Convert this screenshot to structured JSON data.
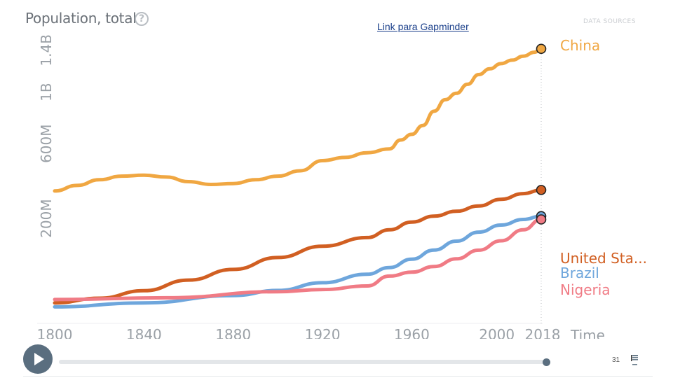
{
  "header": {
    "title": "Population, total",
    "help_icon": "question-circle-icon",
    "link_text": "Link para Gapminder",
    "source_text": "DATA SOURCES"
  },
  "player": {
    "play_icon": "play-icon",
    "current_year": 2018,
    "page_number": "31",
    "flag_icon": "flag-icon"
  },
  "chart_data": {
    "type": "line",
    "title": "Population, total",
    "xlabel": "Time",
    "ylabel": "",
    "xlim": [
      1800,
      2018
    ],
    "ylim": [
      0,
      1450000000
    ],
    "y_scale": "sqrt",
    "x_ticks": [
      {
        "value": 1800,
        "label": "1800"
      },
      {
        "value": 1840,
        "label": "1840"
      },
      {
        "value": 1880,
        "label": "1880"
      },
      {
        "value": 1920,
        "label": "1920"
      },
      {
        "value": 1960,
        "label": "1960"
      },
      {
        "value": 2000,
        "label": "2000"
      },
      {
        "value": 2018,
        "label": "2018"
      }
    ],
    "y_ticks": [
      {
        "value": 200000000,
        "label": "200M"
      },
      {
        "value": 600000000,
        "label": "600M"
      },
      {
        "value": 1000000000,
        "label": "1B"
      },
      {
        "value": 1400000000,
        "label": "1.4B"
      }
    ],
    "grid": false,
    "series": [
      {
        "name": "China",
        "label": "China",
        "color": "#f0a742",
        "x": [
          1800,
          1810,
          1820,
          1830,
          1840,
          1850,
          1860,
          1870,
          1880,
          1890,
          1900,
          1910,
          1920,
          1930,
          1940,
          1950,
          1955,
          1960,
          1965,
          1970,
          1975,
          1980,
          1985,
          1990,
          1995,
          2000,
          2005,
          2010,
          2015,
          2018
        ],
        "y": [
          322000000,
          350000000,
          380000000,
          400000000,
          405000000,
          395000000,
          370000000,
          355000000,
          360000000,
          380000000,
          400000000,
          430000000,
          490000000,
          510000000,
          540000000,
          565000000,
          625000000,
          665000000,
          730000000,
          840000000,
          935000000,
          990000000,
          1070000000,
          1160000000,
          1215000000,
          1265000000,
          1300000000,
          1340000000,
          1380000000,
          1415000000
        ]
      },
      {
        "name": "United States",
        "label": "United Sta...",
        "color": "#d15f22",
        "x": [
          1800,
          1820,
          1840,
          1860,
          1880,
          1900,
          1920,
          1940,
          1950,
          1960,
          1970,
          1980,
          1990,
          2000,
          2010,
          2018
        ],
        "y": [
          6000000,
          9600000,
          17100000,
          31500000,
          50200000,
          76200000,
          106000000,
          132000000,
          158000000,
          186000000,
          209000000,
          229000000,
          252000000,
          282000000,
          309000000,
          327000000
        ]
      },
      {
        "name": "Brazil",
        "label": "Brazil",
        "color": "#6ea6dc",
        "x": [
          1800,
          1840,
          1880,
          1900,
          1920,
          1940,
          1950,
          1960,
          1970,
          1980,
          1990,
          2000,
          2010,
          2018
        ],
        "y": [
          3600000,
          6000000,
          12000000,
          17400000,
          27500000,
          41200000,
          54000000,
          72200000,
          95300000,
          121000000,
          150000000,
          175000000,
          196000000,
          209000000
        ]
      },
      {
        "name": "Nigeria",
        "label": "Nigeria",
        "color": "#f07b85",
        "x": [
          1800,
          1850,
          1900,
          1920,
          1940,
          1950,
          1960,
          1970,
          1980,
          1990,
          2000,
          2010,
          2018
        ],
        "y": [
          8500000,
          10000000,
          16000000,
          18500000,
          23000000,
          38000000,
          45000000,
          56000000,
          73000000,
          95000000,
          122000000,
          158000000,
          196000000
        ]
      }
    ]
  }
}
